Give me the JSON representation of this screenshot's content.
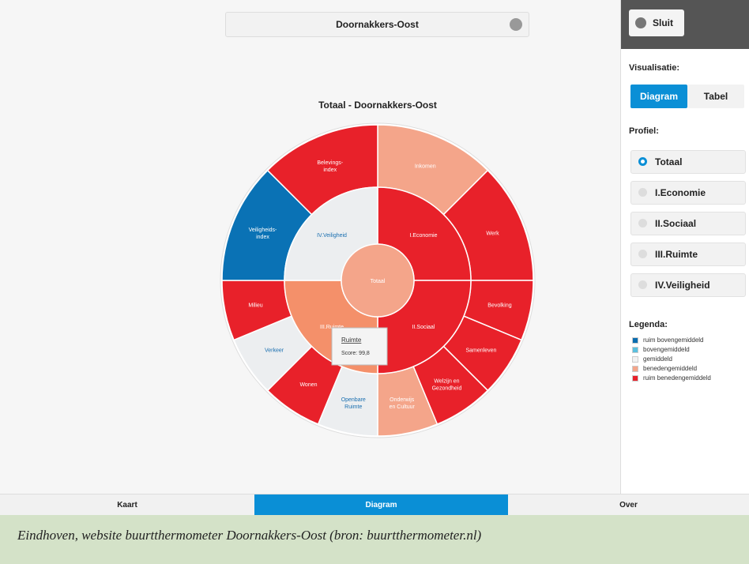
{
  "dropdown": {
    "label": "Doornakkers-Oost"
  },
  "close_button": "Sluit",
  "chart": {
    "title": "Totaal - Doornakkers-Oost",
    "center": {
      "label": [
        "Totaal"
      ],
      "color": "#f4a58a"
    },
    "inner": [
      {
        "label": [
          "I.Economie"
        ],
        "color": "#e8212a"
      },
      {
        "label": [
          "II.Sociaal"
        ],
        "color": "#e8212a"
      },
      {
        "label": [
          "III.Ruimte"
        ],
        "color": "#f4906a"
      },
      {
        "label": [
          "IV.Veiligheid"
        ],
        "color": "#eceef0"
      }
    ],
    "outer": [
      {
        "label": [
          "Inkomen"
        ],
        "color": "#f4a58a"
      },
      {
        "label": [
          "Werk"
        ],
        "color": "#e8212a"
      },
      {
        "label": [
          "Bevolking"
        ],
        "color": "#e8212a"
      },
      {
        "label": [
          "Samenleven"
        ],
        "color": "#e8212a"
      },
      {
        "label": [
          "Welzijn en",
          "Gezondheid"
        ],
        "color": "#e8212a"
      },
      {
        "label": [
          "Onderwijs",
          "en Cultuur"
        ],
        "color": "#f4a58a"
      },
      {
        "label": [
          "Openbare",
          "Ruimte"
        ],
        "color": "#eceef0"
      },
      {
        "label": [
          "Wonen"
        ],
        "color": "#e8212a"
      },
      {
        "label": [
          "Verkeer"
        ],
        "color": "#eceef0"
      },
      {
        "label": [
          "Milieu"
        ],
        "color": "#e8212a"
      },
      {
        "label": [
          "Veiligheids-",
          "index"
        ],
        "color": "#0a72b5"
      },
      {
        "label": [
          "Belevings-",
          "index"
        ],
        "color": "#e8212a"
      }
    ],
    "tooltip": {
      "title": "Ruimte",
      "text": "Score: 99,8"
    }
  },
  "sidebar": {
    "visualisatie_label": "Visualisatie:",
    "view_buttons": [
      "Diagram",
      "Tabel"
    ],
    "profiel_label": "Profiel:",
    "profiles": [
      "Totaal",
      "I.Economie",
      "II.Sociaal",
      "III.Ruimte",
      "IV.Veiligheid"
    ],
    "legend_title": "Legenda:",
    "legend": [
      {
        "label": "ruim bovengemiddeld",
        "color": "#0a6db0"
      },
      {
        "label": "bovengemiddeld",
        "color": "#5bc0de"
      },
      {
        "label": "gemiddeld",
        "color": "#f2f2f2"
      },
      {
        "label": "benedengemiddeld",
        "color": "#f4a58a"
      },
      {
        "label": "ruim benedengemiddeld",
        "color": "#e8212a"
      }
    ]
  },
  "tabs": [
    "Kaart",
    "Diagram",
    "Over"
  ],
  "caption": "Eindhoven, website buurtthermometer Doornakkers-Oost (bron: buurtthermometer.nl)"
}
